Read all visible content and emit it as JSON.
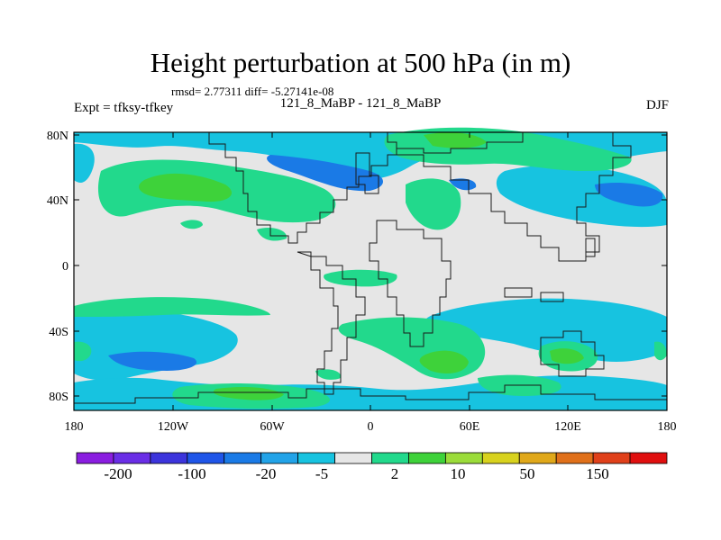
{
  "title": "Height perturbation at 500 hPa (in m)",
  "stats": "rmsd= 2.77311 diff= -5.27141e-08",
  "expt": "Expt = tfksy-tfkey",
  "exptname": "121_8_MaBP - 121_8_MaBP",
  "season": "DJF",
  "lat_labels": [
    "80N",
    "40N",
    "0",
    "40S",
    "80S"
  ],
  "lon_labels": [
    "180",
    "120W",
    "60W",
    "0",
    "60E",
    "120E",
    "180"
  ],
  "colorbar": {
    "colors": [
      "#8a1de0",
      "#6a2ee6",
      "#3c34dc",
      "#1f55e8",
      "#1a7ae6",
      "#22a3e8",
      "#17c3e0",
      "#e6e6e6",
      "#22d98c",
      "#3ed23a",
      "#9bdc3a",
      "#d8d21e",
      "#e0a81a",
      "#e0701a",
      "#e0401a",
      "#e00f0f"
    ],
    "labels": [
      "-200",
      "-100",
      "-20",
      "-5",
      "2",
      "10",
      "50",
      "150"
    ]
  },
  "colors": {
    "neutral": "#e6e6e6",
    "cyan": "#17c3e0",
    "blue": "#1a7ae6",
    "green": "#22d98c",
    "lime": "#3ed23a"
  }
}
